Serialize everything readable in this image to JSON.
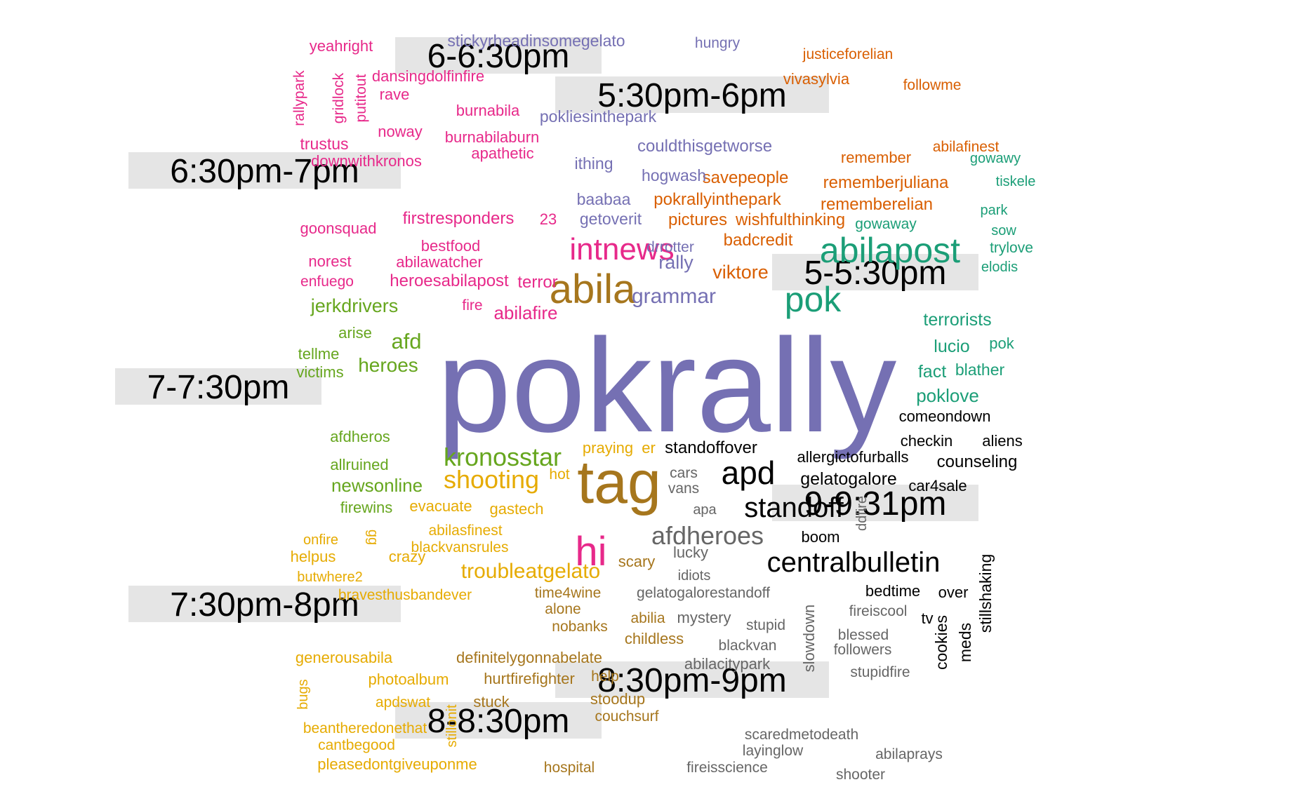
{
  "chart_data": {
    "type": "wordcloud",
    "palette": {
      "black": "#000000",
      "gray": "#666666",
      "brown": "#A6761D",
      "gold": "#E6AB02",
      "olive": "#66A61E",
      "magenta": "#E7298A",
      "purple": "#7570B3",
      "orange": "#D95F02",
      "teal": "#1B9E77",
      "label_background": "#E5E5E5"
    },
    "period_labels": [
      {
        "text": "6-6:30pm",
        "group": "magenta"
      },
      {
        "text": "5:30pm-6pm",
        "group": "orange"
      },
      {
        "text": "6:30pm-7pm",
        "group": "magenta"
      },
      {
        "text": "5-5:30pm",
        "group": "teal"
      },
      {
        "text": "7-7:30pm",
        "group": "olive"
      },
      {
        "text": "9-9:31pm",
        "group": "black"
      },
      {
        "text": "7:30pm-8pm",
        "group": "gold"
      },
      {
        "text": "8:30pm-9pm",
        "group": "gray"
      },
      {
        "text": "8-8:30pm",
        "group": "brown"
      }
    ],
    "words": [
      {
        "text": "pokrally",
        "group": "purple",
        "weight": 10
      },
      {
        "text": "tag",
        "group": "brown",
        "weight": 5
      },
      {
        "text": "hi",
        "group": "magenta",
        "weight": 4
      },
      {
        "text": "abila",
        "group": "brown",
        "weight": 4
      },
      {
        "text": "abilapost",
        "group": "teal",
        "weight": 4
      },
      {
        "text": "pok",
        "group": "teal",
        "weight": 4
      },
      {
        "text": "intnews",
        "group": "magenta",
        "weight": 3.5
      },
      {
        "text": "apd",
        "group": "black",
        "weight": 3.5
      },
      {
        "text": "standoff",
        "group": "black",
        "weight": 3
      },
      {
        "text": "centralbulletin",
        "group": "black",
        "weight": 3
      },
      {
        "text": "afdheroes",
        "group": "gray",
        "weight": 3
      },
      {
        "text": "kronosstar",
        "group": "olive",
        "weight": 3
      },
      {
        "text": "shooting",
        "group": "gold",
        "weight": 3
      },
      {
        "text": "troubleatgelato",
        "group": "gold",
        "weight": 2.5
      },
      {
        "text": "grammar",
        "group": "purple",
        "weight": 2.5
      },
      {
        "text": "viktore",
        "group": "orange",
        "weight": 2
      },
      {
        "text": "rally",
        "group": "purple",
        "weight": 2
      },
      {
        "text": "afd",
        "group": "olive",
        "weight": 2
      },
      {
        "text": "heroes",
        "group": "olive",
        "weight": 2
      },
      {
        "text": "newsonline",
        "group": "olive",
        "weight": 2
      },
      {
        "text": "jerkdrivers",
        "group": "olive",
        "weight": 2
      },
      {
        "text": "abilafire",
        "group": "magenta",
        "weight": 2
      },
      {
        "text": "terror",
        "group": "magenta",
        "weight": 2
      },
      {
        "text": "heroesabilapost",
        "group": "magenta",
        "weight": 2
      },
      {
        "text": "firstresponders",
        "group": "magenta",
        "weight": 2
      },
      {
        "text": "pokrallyinthepark",
        "group": "orange",
        "weight": 2
      },
      {
        "text": "pictures",
        "group": "orange",
        "weight": 2
      },
      {
        "text": "wishfulthinking",
        "group": "orange",
        "weight": 2
      },
      {
        "text": "badcredit",
        "group": "orange",
        "weight": 2
      },
      {
        "text": "savepeople",
        "group": "orange",
        "weight": 2
      },
      {
        "text": "rememberjuliana",
        "group": "orange",
        "weight": 2
      },
      {
        "text": "rememberelian",
        "group": "orange",
        "weight": 2
      },
      {
        "text": "remember",
        "group": "orange",
        "weight": 1.5
      },
      {
        "text": "abilafinest",
        "group": "orange",
        "weight": 1.5
      },
      {
        "text": "justiceforelian",
        "group": "orange",
        "weight": 1.5
      },
      {
        "text": "vivasylvia",
        "group": "orange",
        "weight": 1.5
      },
      {
        "text": "followme",
        "group": "orange",
        "weight": 1.5
      },
      {
        "text": "gelatogalore",
        "group": "black",
        "weight": 2
      },
      {
        "text": "allergictofurballs",
        "group": "black",
        "weight": 2
      },
      {
        "text": "standoffover",
        "group": "black",
        "weight": 2
      },
      {
        "text": "comeondown",
        "group": "black",
        "weight": 2
      },
      {
        "text": "counseling",
        "group": "black",
        "weight": 2
      },
      {
        "text": "checkin",
        "group": "black",
        "weight": 2
      },
      {
        "text": "aliens",
        "group": "black",
        "weight": 2
      },
      {
        "text": "car4sale",
        "group": "black",
        "weight": 2
      },
      {
        "text": "boom",
        "group": "black",
        "weight": 2
      },
      {
        "text": "bedtime",
        "group": "black",
        "weight": 2
      },
      {
        "text": "over",
        "group": "black",
        "weight": 2
      },
      {
        "text": "tv",
        "group": "black",
        "weight": 2
      },
      {
        "text": "cookies",
        "group": "black",
        "weight": 2
      },
      {
        "text": "meds",
        "group": "black",
        "weight": 2
      },
      {
        "text": "stillshaking",
        "group": "black",
        "weight": 2
      },
      {
        "text": "terrorists",
        "group": "teal",
        "weight": 2
      },
      {
        "text": "lucio",
        "group": "teal",
        "weight": 2
      },
      {
        "text": "fact",
        "group": "teal",
        "weight": 2
      },
      {
        "text": "blather",
        "group": "teal",
        "weight": 2
      },
      {
        "text": "poklove",
        "group": "teal",
        "weight": 2
      },
      {
        "text": "pok",
        "group": "teal",
        "weight": 1.5
      },
      {
        "text": "gowawy",
        "group": "teal",
        "weight": 1.5
      },
      {
        "text": "tiskele",
        "group": "teal",
        "weight": 1.5
      },
      {
        "text": "park",
        "group": "teal",
        "weight": 1.5
      },
      {
        "text": "gowaway",
        "group": "teal",
        "weight": 1.5
      },
      {
        "text": "sow",
        "group": "teal",
        "weight": 1.5
      },
      {
        "text": "trylove",
        "group": "teal",
        "weight": 1.5
      },
      {
        "text": "elodis",
        "group": "teal",
        "weight": 1.5
      },
      {
        "text": "stickyrheadinsomegelato",
        "group": "purple",
        "weight": 1.5
      },
      {
        "text": "hungry",
        "group": "purple",
        "weight": 1.5
      },
      {
        "text": "pokliesinthepark",
        "group": "purple",
        "weight": 1.5
      },
      {
        "text": "couldthisgetworse",
        "group": "purple",
        "weight": 1.5
      },
      {
        "text": "ithing",
        "group": "purple",
        "weight": 1.5
      },
      {
        "text": "hogwash",
        "group": "purple",
        "weight": 1.5
      },
      {
        "text": "baabaa",
        "group": "purple",
        "weight": 1.5
      },
      {
        "text": "getoverit",
        "group": "purple",
        "weight": 1.5
      },
      {
        "text": "drrotter",
        "group": "purple",
        "weight": 1.5
      },
      {
        "text": "yeahright",
        "group": "magenta",
        "weight": 1.5
      },
      {
        "text": "dansingdolfinfire",
        "group": "magenta",
        "weight": 1.5
      },
      {
        "text": "rallypark",
        "group": "magenta",
        "weight": 1.5
      },
      {
        "text": "gridlock",
        "group": "magenta",
        "weight": 1.5
      },
      {
        "text": "putitout",
        "group": "magenta",
        "weight": 1.5
      },
      {
        "text": "rave",
        "group": "magenta",
        "weight": 1.5
      },
      {
        "text": "burnabila",
        "group": "magenta",
        "weight": 1.5
      },
      {
        "text": "noway",
        "group": "magenta",
        "weight": 1.5
      },
      {
        "text": "burnabilaburn",
        "group": "magenta",
        "weight": 1.5
      },
      {
        "text": "trustus",
        "group": "magenta",
        "weight": 1.5
      },
      {
        "text": "apathetic",
        "group": "magenta",
        "weight": 1.5
      },
      {
        "text": "downwithkronos",
        "group": "magenta",
        "weight": 1.5
      },
      {
        "text": "goonsquad",
        "group": "magenta",
        "weight": 1.5
      },
      {
        "text": "23",
        "group": "magenta",
        "weight": 1.5
      },
      {
        "text": "bestfood",
        "group": "magenta",
        "weight": 1.5
      },
      {
        "text": "norest",
        "group": "magenta",
        "weight": 1.5
      },
      {
        "text": "abilawatcher",
        "group": "magenta",
        "weight": 1.5
      },
      {
        "text": "enfuego",
        "group": "magenta",
        "weight": 1.5
      },
      {
        "text": "fire",
        "group": "magenta",
        "weight": 1.5
      },
      {
        "text": "arise",
        "group": "olive",
        "weight": 1.5
      },
      {
        "text": "tellme",
        "group": "olive",
        "weight": 1.5
      },
      {
        "text": "victims",
        "group": "olive",
        "weight": 1.5
      },
      {
        "text": "afdheros",
        "group": "olive",
        "weight": 1.5
      },
      {
        "text": "allruined",
        "group": "olive",
        "weight": 1.5
      },
      {
        "text": "firewins",
        "group": "olive",
        "weight": 1.5
      },
      {
        "text": "praying",
        "group": "gold",
        "weight": 1.5
      },
      {
        "text": "er",
        "group": "gold",
        "weight": 1.5
      },
      {
        "text": "hot",
        "group": "gold",
        "weight": 1.5
      },
      {
        "text": "evacuate",
        "group": "gold",
        "weight": 1.5
      },
      {
        "text": "gastech",
        "group": "gold",
        "weight": 1.5
      },
      {
        "text": "onfire",
        "group": "gold",
        "weight": 1.5
      },
      {
        "text": "gg",
        "group": "gold",
        "weight": 1.5
      },
      {
        "text": "abilasfinest",
        "group": "gold",
        "weight": 1.5
      },
      {
        "text": "blackvansrules",
        "group": "gold",
        "weight": 1.5
      },
      {
        "text": "helpus",
        "group": "gold",
        "weight": 1.5
      },
      {
        "text": "crazy",
        "group": "gold",
        "weight": 1.5
      },
      {
        "text": "butwhere2",
        "group": "gold",
        "weight": 1.5
      },
      {
        "text": "bravesthusbandever",
        "group": "gold",
        "weight": 1.5
      },
      {
        "text": "generousabila",
        "group": "gold",
        "weight": 1.5
      },
      {
        "text": "bugs",
        "group": "gold",
        "weight": 1.5
      },
      {
        "text": "photoalbum",
        "group": "gold",
        "weight": 1.5
      },
      {
        "text": "apdswat",
        "group": "gold",
        "weight": 1.5
      },
      {
        "text": "stillonit",
        "group": "gold",
        "weight": 1.5
      },
      {
        "text": "beantheredonethat",
        "group": "gold",
        "weight": 1.5
      },
      {
        "text": "cantbegood",
        "group": "gold",
        "weight": 1.5
      },
      {
        "text": "pleasedontgiveuponme",
        "group": "gold",
        "weight": 1.5
      },
      {
        "text": "scary",
        "group": "brown",
        "weight": 1.5
      },
      {
        "text": "time4wine",
        "group": "brown",
        "weight": 1.5
      },
      {
        "text": "alone",
        "group": "brown",
        "weight": 1.5
      },
      {
        "text": "abilia",
        "group": "brown",
        "weight": 1.5
      },
      {
        "text": "nobanks",
        "group": "brown",
        "weight": 1.5
      },
      {
        "text": "childless",
        "group": "brown",
        "weight": 1.5
      },
      {
        "text": "definitelygonnabelate",
        "group": "brown",
        "weight": 1.5
      },
      {
        "text": "hurtfirefighter",
        "group": "brown",
        "weight": 1.5
      },
      {
        "text": "help",
        "group": "brown",
        "weight": 1.5
      },
      {
        "text": "stuck",
        "group": "brown",
        "weight": 1.5
      },
      {
        "text": "stoodup",
        "group": "brown",
        "weight": 1.5
      },
      {
        "text": "couchsurf",
        "group": "brown",
        "weight": 1.5
      },
      {
        "text": "hospital",
        "group": "brown",
        "weight": 1.5
      },
      {
        "text": "cars",
        "group": "gray",
        "weight": 1.5
      },
      {
        "text": "vans",
        "group": "gray",
        "weight": 1.5
      },
      {
        "text": "apa",
        "group": "gray",
        "weight": 1.5
      },
      {
        "text": "ddfire",
        "group": "gray",
        "weight": 1.5
      },
      {
        "text": "lucky",
        "group": "gray",
        "weight": 1.5
      },
      {
        "text": "idiots",
        "group": "gray",
        "weight": 1.5
      },
      {
        "text": "gelatogalorestandoff",
        "group": "gray",
        "weight": 1.5
      },
      {
        "text": "mystery",
        "group": "gray",
        "weight": 1.5
      },
      {
        "text": "stupid",
        "group": "gray",
        "weight": 1.5
      },
      {
        "text": "slowdown",
        "group": "gray",
        "weight": 1.5
      },
      {
        "text": "fireiscool",
        "group": "gray",
        "weight": 1.5
      },
      {
        "text": "blessed",
        "group": "gray",
        "weight": 1.5
      },
      {
        "text": "followers",
        "group": "gray",
        "weight": 1.5
      },
      {
        "text": "blackvan",
        "group": "gray",
        "weight": 1.5
      },
      {
        "text": "abilacitypark",
        "group": "gray",
        "weight": 1.5
      },
      {
        "text": "stupidfire",
        "group": "gray",
        "weight": 1.5
      },
      {
        "text": "scaredmetodeath",
        "group": "gray",
        "weight": 1.5
      },
      {
        "text": "layinglow",
        "group": "gray",
        "weight": 1.5
      },
      {
        "text": "abilaprays",
        "group": "gray",
        "weight": 1.5
      },
      {
        "text": "fireisscience",
        "group": "gray",
        "weight": 1.5
      },
      {
        "text": "shooter",
        "group": "gray",
        "weight": 1.5
      }
    ]
  }
}
